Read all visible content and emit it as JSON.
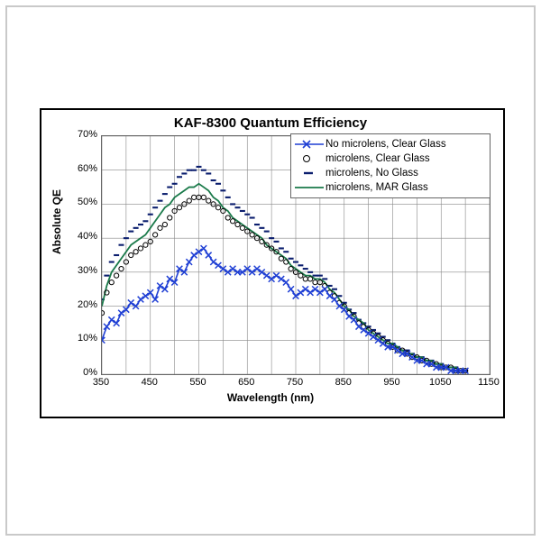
{
  "chart": {
    "type": "line+scatter",
    "title": "KAF-8300 Quantum Efficiency",
    "xlabel": "Wavelength (nm)",
    "ylabel": "Absolute QE",
    "title_fontsize": 15,
    "label_fontsize": 12,
    "tick_fontsize": 11,
    "background_color": "#ffffff",
    "grid_color": "#888888",
    "border_color": "#000000",
    "xlim": [
      350,
      1150
    ],
    "ylim": [
      0,
      70
    ],
    "xticks": [
      350,
      450,
      550,
      650,
      750,
      850,
      950,
      1050,
      1150
    ],
    "yticks": [
      0,
      10,
      20,
      30,
      40,
      50,
      60,
      70
    ],
    "ytick_suffix": "%",
    "legend": {
      "position": "top-right-inside",
      "items": [
        {
          "label": "No microlens, Clear Glass",
          "kind": "line-x",
          "color": "#1f3fd4"
        },
        {
          "label": "microlens, Clear Glass",
          "kind": "circle",
          "color": "#000000"
        },
        {
          "label": "microlens, No Glass",
          "kind": "dash",
          "color": "#0b1e6e"
        },
        {
          "label": "microlens, MAR Glass",
          "kind": "line",
          "color": "#1a7a4a"
        }
      ]
    },
    "series": {
      "no_microlens_clear": {
        "style": "line-with-x-markers",
        "color": "#1f3fd4",
        "line_width": 1.6,
        "marker_size": 5,
        "x": [
          350,
          360,
          370,
          380,
          390,
          400,
          410,
          420,
          430,
          440,
          450,
          460,
          470,
          480,
          490,
          500,
          510,
          520,
          530,
          540,
          550,
          560,
          570,
          580,
          590,
          600,
          610,
          620,
          630,
          640,
          650,
          660,
          670,
          680,
          690,
          700,
          710,
          720,
          730,
          740,
          750,
          760,
          770,
          780,
          790,
          800,
          810,
          820,
          830,
          840,
          850,
          860,
          870,
          880,
          890,
          900,
          910,
          920,
          930,
          940,
          950,
          960,
          970,
          980,
          990,
          1000,
          1010,
          1020,
          1030,
          1040,
          1050,
          1060,
          1070,
          1080,
          1090,
          1100
        ],
        "y": [
          10,
          14,
          16,
          15,
          18,
          19,
          21,
          20,
          22,
          23,
          24,
          22,
          26,
          25,
          28,
          27,
          31,
          30,
          33,
          35,
          36,
          37,
          35,
          33,
          32,
          31,
          30,
          31,
          30,
          30,
          31,
          30,
          31,
          30,
          29,
          28,
          29,
          28,
          27,
          25,
          23,
          24,
          25,
          24,
          25,
          24,
          25,
          23,
          22,
          20,
          19,
          17,
          16,
          14,
          13,
          12,
          11,
          10,
          9,
          8,
          8,
          7,
          6,
          6,
          5,
          4,
          4,
          3,
          3,
          2,
          2,
          2,
          1,
          1,
          1,
          1
        ]
      },
      "microlens_clear": {
        "style": "open-circles",
        "color": "#000000",
        "marker_size": 4.2,
        "x": [
          350,
          360,
          370,
          380,
          390,
          400,
          410,
          420,
          430,
          440,
          450,
          460,
          470,
          480,
          490,
          500,
          510,
          520,
          530,
          540,
          550,
          560,
          570,
          580,
          590,
          600,
          610,
          620,
          630,
          640,
          650,
          660,
          670,
          680,
          690,
          700,
          710,
          720,
          730,
          740,
          750,
          760,
          770,
          780,
          790,
          800,
          810,
          820,
          830,
          840,
          850,
          860,
          870,
          880,
          890,
          900,
          910,
          920,
          930,
          940,
          950,
          960,
          970,
          980,
          990,
          1000,
          1010,
          1020,
          1030,
          1040,
          1050,
          1060,
          1070,
          1080,
          1090,
          1100
        ],
        "y": [
          18,
          24,
          27,
          29,
          31,
          33,
          35,
          36,
          37,
          38,
          39,
          41,
          43,
          44,
          46,
          48,
          49,
          50,
          51,
          52,
          52,
          52,
          51,
          50,
          49,
          48,
          46,
          45,
          44,
          43,
          42,
          41,
          40,
          39,
          38,
          37,
          36,
          34,
          33,
          31,
          30,
          29,
          28,
          28,
          27,
          27,
          26,
          24,
          23,
          21,
          20,
          18,
          17,
          15,
          14,
          13,
          12,
          11,
          10,
          9,
          8,
          7,
          7,
          6,
          5,
          5,
          4,
          4,
          3,
          3,
          2,
          2,
          2,
          1,
          1,
          1
        ]
      },
      "microlens_no_glass": {
        "style": "short-dashes",
        "color": "#0b1e6e",
        "dash_len": 5,
        "line_width": 2.1,
        "x": [
          350,
          360,
          370,
          380,
          390,
          400,
          410,
          420,
          430,
          440,
          450,
          460,
          470,
          480,
          490,
          500,
          510,
          520,
          530,
          540,
          550,
          560,
          570,
          580,
          590,
          600,
          610,
          620,
          630,
          640,
          650,
          660,
          670,
          680,
          690,
          700,
          710,
          720,
          730,
          740,
          750,
          760,
          770,
          780,
          790,
          800,
          810,
          820,
          830,
          840,
          850,
          860,
          870,
          880,
          890,
          900,
          910,
          920,
          930,
          940,
          950,
          960,
          970,
          980,
          990,
          1000,
          1010,
          1020,
          1030,
          1040,
          1050,
          1060,
          1070,
          1080,
          1090,
          1100
        ],
        "y": [
          22,
          29,
          33,
          35,
          38,
          40,
          42,
          43,
          44,
          45,
          47,
          49,
          51,
          53,
          55,
          56,
          58,
          59,
          60,
          60,
          61,
          60,
          59,
          57,
          56,
          54,
          52,
          50,
          49,
          48,
          47,
          46,
          44,
          43,
          42,
          40,
          39,
          37,
          36,
          34,
          33,
          32,
          31,
          30,
          29,
          29,
          28,
          26,
          25,
          23,
          21,
          19,
          18,
          16,
          15,
          14,
          13,
          12,
          11,
          10,
          9,
          8,
          7,
          7,
          6,
          5,
          5,
          4,
          4,
          3,
          3,
          2,
          2,
          2,
          1,
          1
        ]
      },
      "microlens_mar": {
        "style": "solid-line",
        "color": "#1a7a4a",
        "line_width": 1.8,
        "x": [
          350,
          360,
          370,
          380,
          390,
          400,
          410,
          420,
          430,
          440,
          450,
          460,
          470,
          480,
          490,
          500,
          510,
          520,
          530,
          540,
          550,
          560,
          570,
          580,
          590,
          600,
          610,
          620,
          630,
          640,
          650,
          660,
          670,
          680,
          690,
          700,
          710,
          720,
          730,
          740,
          750,
          760,
          770,
          780,
          790,
          800,
          810,
          820,
          830,
          840,
          850,
          860,
          870,
          880,
          890,
          900,
          910,
          920,
          930,
          940,
          950,
          960,
          970,
          980,
          990,
          1000,
          1010,
          1020,
          1030,
          1040,
          1050,
          1060,
          1070,
          1080,
          1090,
          1100
        ],
        "y": [
          20,
          26,
          30,
          32,
          34,
          36,
          38,
          39,
          40,
          41,
          43,
          45,
          47,
          49,
          50,
          52,
          53,
          54,
          55,
          55,
          56,
          55,
          54,
          52,
          51,
          49,
          48,
          46,
          45,
          44,
          43,
          42,
          41,
          40,
          38,
          37,
          36,
          35,
          34,
          32,
          31,
          30,
          29,
          29,
          28,
          28,
          27,
          25,
          24,
          22,
          20,
          19,
          17,
          16,
          15,
          13,
          12,
          11,
          10,
          9,
          9,
          8,
          7,
          6,
          6,
          5,
          5,
          4,
          4,
          3,
          3,
          2,
          2,
          2,
          1,
          1
        ]
      }
    }
  }
}
